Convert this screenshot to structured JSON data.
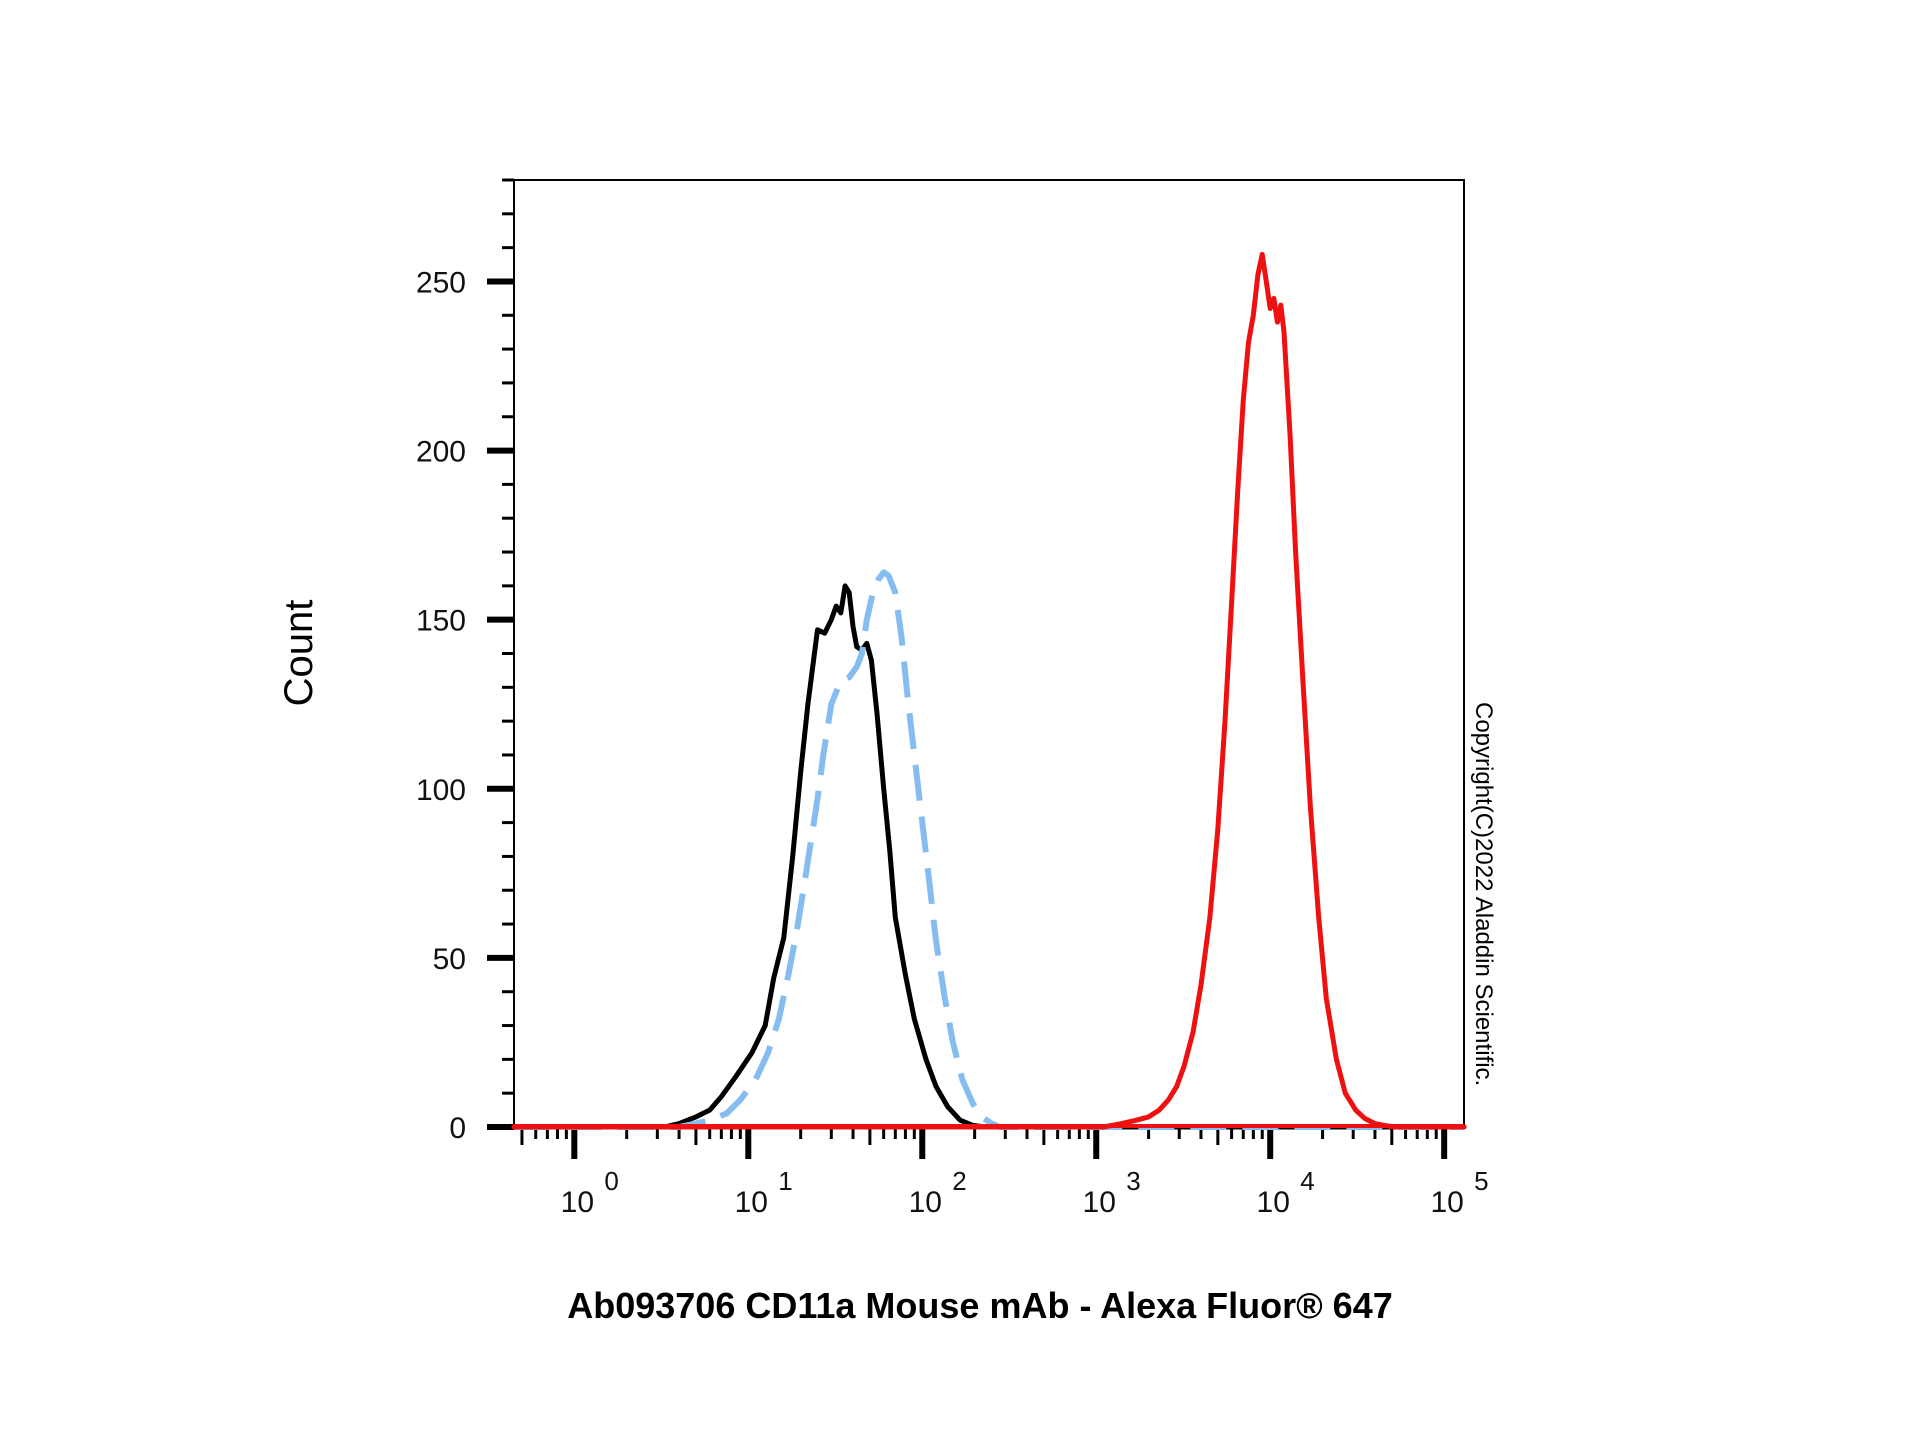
{
  "chart_data": {
    "type": "line",
    "title": "",
    "xlabel": "Ab093706 CD11a Mouse mAb - Alexa Fluor® 647",
    "ylabel": "Count",
    "xscale": "log",
    "xlim": [
      0.45,
      130000
    ],
    "ylim": [
      0,
      280
    ],
    "grid": false,
    "legend": "none",
    "x_ticks": [
      {
        "value": 1,
        "base": "10",
        "exp": "0"
      },
      {
        "value": 10,
        "base": "10",
        "exp": "1"
      },
      {
        "value": 100,
        "base": "10",
        "exp": "2"
      },
      {
        "value": 1000,
        "base": "10",
        "exp": "3"
      },
      {
        "value": 10000,
        "base": "10",
        "exp": "4"
      },
      {
        "value": 100000,
        "base": "10",
        "exp": "5"
      }
    ],
    "y_ticks": [
      {
        "value": 0,
        "label": "0"
      },
      {
        "value": 50,
        "label": "50"
      },
      {
        "value": 100,
        "label": "100"
      },
      {
        "value": 150,
        "label": "150"
      },
      {
        "value": 200,
        "label": "200"
      },
      {
        "value": 250,
        "label": "250"
      }
    ],
    "annotation": "Copyright(C)2022 Aladdin Scientific.",
    "series": [
      {
        "color": "#000000",
        "style": "solid",
        "x": [
          0.45,
          3.3,
          4.0,
          5.0,
          6.0,
          7.0,
          8.5,
          10.5,
          12.5,
          14.0,
          16.0,
          18.0,
          20.0,
          22.0,
          25.0,
          27.5,
          30.0,
          32.0,
          34.0,
          36.0,
          38.0,
          40.0,
          42.0,
          45.0,
          48.0,
          51.0,
          55.0,
          60.0,
          65.0,
          70.0,
          80.0,
          90.0,
          105.0,
          120.0,
          140.0,
          165.0,
          195.0,
          230.0,
          270.0,
          130000
        ],
        "y": [
          0,
          0,
          1,
          3,
          5,
          9,
          15,
          22,
          30,
          44,
          56,
          80,
          105,
          125,
          147,
          146,
          150,
          154,
          152,
          160,
          158,
          148,
          142,
          141,
          143,
          138,
          122,
          100,
          82,
          62,
          45,
          32,
          20,
          12,
          6,
          2,
          0.5,
          0,
          0,
          0
        ]
      },
      {
        "color": "#85bdf0",
        "style": "dashed",
        "x": [
          0.45,
          4.0,
          5.0,
          6.0,
          7.5,
          9.0,
          11.0,
          13.0,
          15.0,
          17.0,
          19.0,
          21.0,
          23.0,
          25.0,
          27.0,
          30.0,
          34.0,
          38.0,
          42.0,
          45.0,
          48.0,
          52.0,
          56.0,
          60.0,
          64.0,
          70.0,
          76.0,
          82.0,
          90.0,
          100.0,
          110.0,
          120.0,
          135.0,
          150.0,
          170.0,
          195.0,
          220.0,
          250.0,
          280.0,
          130000
        ],
        "y": [
          0,
          0,
          1,
          2,
          4,
          8,
          14,
          22,
          32,
          45,
          58,
          72,
          85,
          97,
          110,
          125,
          132,
          133,
          136,
          140,
          150,
          158,
          162,
          164,
          163,
          158,
          145,
          128,
          110,
          90,
          72,
          55,
          38,
          25,
          14,
          7,
          3,
          1,
          0,
          0
        ]
      },
      {
        "color": "#ee1111",
        "style": "solid",
        "x": [
          0.45,
          1100,
          1400,
          1700,
          2000,
          2300,
          2600,
          2900,
          3200,
          3600,
          4000,
          4500,
          5000,
          5500,
          6000,
          6500,
          7000,
          7500,
          8000,
          8500,
          9000,
          9500,
          10000,
          10500,
          11000,
          11500,
          12000,
          13000,
          14000,
          15500,
          17000,
          19000,
          21000,
          24000,
          27000,
          31000,
          35000,
          40000,
          45000,
          52000,
          130000
        ],
        "y": [
          0,
          0,
          1,
          2,
          3,
          5,
          8,
          12,
          18,
          28,
          42,
          62,
          88,
          120,
          155,
          188,
          215,
          232,
          240,
          252,
          258,
          250,
          242,
          245,
          238,
          243,
          235,
          205,
          170,
          130,
          95,
          62,
          38,
          20,
          10,
          5,
          2.5,
          1,
          0.5,
          0,
          0
        ]
      }
    ]
  }
}
